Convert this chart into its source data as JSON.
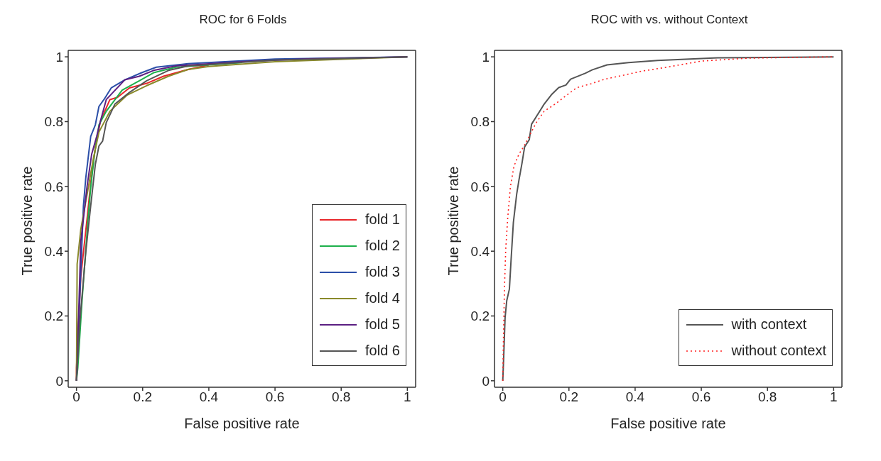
{
  "chart_data": [
    {
      "type": "line",
      "title": "ROC for 6 Folds",
      "xlabel": "False positive rate",
      "ylabel": "True positive rate",
      "xlim": [
        -0.025,
        1.025
      ],
      "ylim": [
        -0.02,
        1.02
      ],
      "xticks": [
        0,
        0.2,
        0.4,
        0.6,
        0.8,
        1
      ],
      "yticks": [
        0,
        0.2,
        0.4,
        0.6,
        0.8,
        1
      ],
      "grid": false,
      "legend": "bottom right",
      "marker": "none",
      "line_style": "solid",
      "series": [
        {
          "name": "fold 1",
          "color": "#e8262a",
          "x": [
            0,
            0,
            0.013,
            0.032,
            0.043,
            0.057,
            0.072,
            0.101,
            0.124,
            0.16,
            0.212,
            0.263,
            0.337,
            0.4
          ],
          "values": [
            0,
            0.04,
            0.32,
            0.5,
            0.61,
            0.72,
            0.8,
            0.868,
            0.875,
            0.904,
            0.918,
            0.94,
            0.961,
            0.975
          ]
        },
        {
          "name": "fold 2",
          "color": "#1db04b",
          "x": [
            0,
            0.004,
            0.017,
            0.035,
            0.043,
            0.054,
            0.068,
            0.09,
            0.138,
            0.19,
            0.233,
            0.3,
            0.5
          ],
          "values": [
            0,
            0.04,
            0.25,
            0.5,
            0.596,
            0.697,
            0.79,
            0.832,
            0.897,
            0.926,
            0.951,
            0.968,
            0.982
          ]
        },
        {
          "name": "fold 3",
          "color": "#2b4fa8",
          "x": [
            0,
            0.021,
            0.028,
            0.043,
            0.057,
            0.068,
            0.083,
            0.105,
            0.146,
            0.197,
            0.241,
            0.337,
            0.6,
            1
          ],
          "values": [
            0,
            0.54,
            0.625,
            0.754,
            0.79,
            0.847,
            0.868,
            0.904,
            0.929,
            0.951,
            0.968,
            0.979,
            0.993,
            1
          ]
        },
        {
          "name": "fold 4",
          "color": "#8a8a2a",
          "x": [
            0,
            0.002,
            0.013,
            0.032,
            0.05,
            0.068,
            0.101,
            0.153,
            0.212,
            0.278,
            0.337,
            0.4,
            0.6,
            1
          ],
          "values": [
            0,
            0.36,
            0.467,
            0.575,
            0.68,
            0.768,
            0.832,
            0.882,
            0.911,
            0.94,
            0.961,
            0.97,
            0.985,
            1
          ]
        },
        {
          "name": "fold 5",
          "color": "#5b1f82",
          "x": [
            0,
            0.002,
            0.013,
            0.021,
            0.032,
            0.046,
            0.061,
            0.072,
            0.09,
            0.146,
            0.19,
            0.233,
            0.3,
            0.5,
            0.7,
            1
          ],
          "values": [
            0,
            0.04,
            0.43,
            0.5,
            0.6,
            0.7,
            0.754,
            0.8,
            0.868,
            0.929,
            0.94,
            0.958,
            0.972,
            0.985,
            0.994,
            1
          ]
        },
        {
          "name": "fold 6",
          "color": "#555555",
          "x": [
            0,
            0.01,
            0.028,
            0.043,
            0.057,
            0.068,
            0.079,
            0.09,
            0.116,
            0.16,
            0.212,
            0.278,
            0.337,
            0.6,
            1
          ],
          "values": [
            0,
            0.18,
            0.396,
            0.54,
            0.668,
            0.725,
            0.74,
            0.797,
            0.854,
            0.89,
            0.926,
            0.958,
            0.972,
            0.99,
            1
          ]
        }
      ]
    },
    {
      "type": "line",
      "title": "ROC with vs. without Context",
      "xlabel": "False positive rate",
      "ylabel": "True positive rate",
      "xlim": [
        -0.025,
        1.025
      ],
      "ylim": [
        -0.02,
        1.02
      ],
      "xticks": [
        0,
        0.2,
        0.4,
        0.6,
        0.8,
        1
      ],
      "yticks": [
        0,
        0.2,
        0.4,
        0.6,
        0.8,
        1
      ],
      "grid": false,
      "legend": "bottom right",
      "marker": "none",
      "series": [
        {
          "name": "with context",
          "color": "#555555",
          "line_style": "solid",
          "x": [
            0,
            0.003,
            0.007,
            0.012,
            0.02,
            0.025,
            0.032,
            0.042,
            0.049,
            0.058,
            0.066,
            0.08,
            0.087,
            0.103,
            0.125,
            0.147,
            0.169,
            0.191,
            0.205,
            0.249,
            0.271,
            0.315,
            0.38,
            0.468,
            0.65,
            1
          ],
          "values": [
            0,
            0.078,
            0.195,
            0.247,
            0.283,
            0.371,
            0.488,
            0.576,
            0.62,
            0.671,
            0.722,
            0.744,
            0.792,
            0.818,
            0.854,
            0.883,
            0.905,
            0.913,
            0.931,
            0.949,
            0.96,
            0.975,
            0.982,
            0.989,
            0.997,
            1
          ]
        },
        {
          "name": "without context",
          "color": "#ff2020",
          "line_style": "dotted",
          "x": [
            0,
            0.0015,
            0.005,
            0.009,
            0.015,
            0.023,
            0.034,
            0.049,
            0.063,
            0.082,
            0.1,
            0.125,
            0.158,
            0.191,
            0.224,
            0.264,
            0.308,
            0.359,
            0.421,
            0.49,
            0.6,
            0.745,
            1
          ],
          "values": [
            0,
            0.1,
            0.283,
            0.407,
            0.503,
            0.598,
            0.663,
            0.7,
            0.722,
            0.759,
            0.795,
            0.832,
            0.854,
            0.88,
            0.905,
            0.916,
            0.931,
            0.942,
            0.956,
            0.967,
            0.987,
            0.996,
            1
          ]
        }
      ]
    }
  ]
}
